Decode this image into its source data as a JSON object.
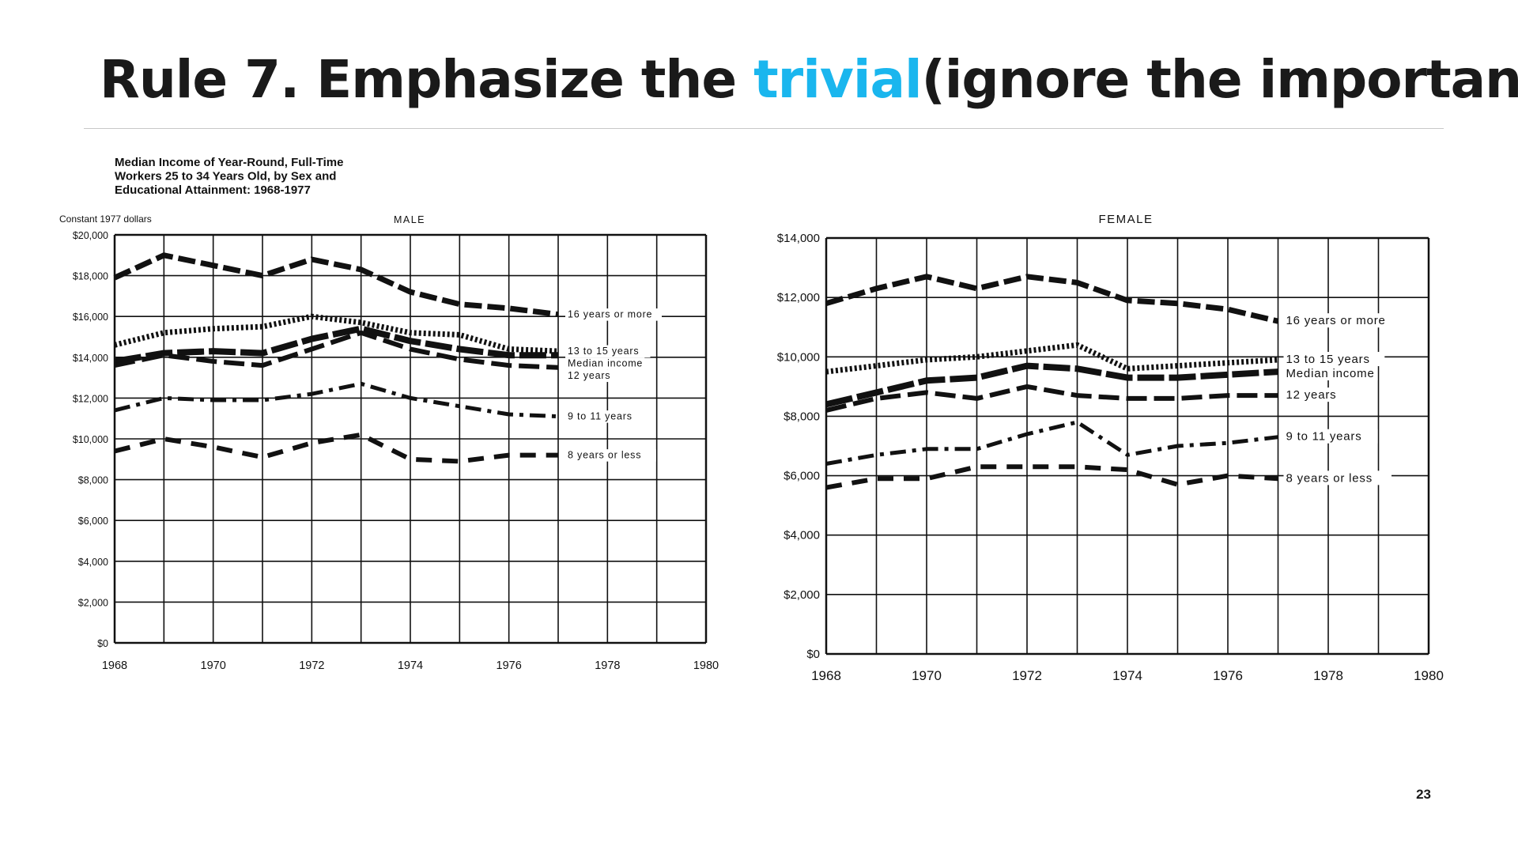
{
  "slide": {
    "title_prefix": "Rule 7. Emphasize the ",
    "title_highlight": "trivial",
    "title_suffix": "(ignore the important)",
    "highlight_color": "#1ab6ee",
    "page_number": "23"
  },
  "chart_data": [
    {
      "type": "line",
      "figure_title": [
        "Median Income of Year-Round, Full-Time",
        "Workers 25 to 34 Years Old, by Sex and",
        "Educational Attainment: 1968-1977"
      ],
      "title": "MALE",
      "ylabel": "Constant 1977 dollars",
      "xlim": [
        1968,
        1980
      ],
      "ylim": [
        0,
        20000
      ],
      "x_ticks": [
        "1968",
        "1970",
        "1972",
        "1974",
        "1976",
        "1978",
        "1980"
      ],
      "y_ticks": [
        "$0",
        "$2,000",
        "$4,000",
        "$6,000",
        "$8,000",
        "$10,000",
        "$12,000",
        "$14,000",
        "$16,000",
        "$18,000",
        "$20,000"
      ],
      "grid": true,
      "legend": "inline labels at right end of series",
      "x": [
        1968,
        1969,
        1970,
        1971,
        1972,
        1973,
        1974,
        1975,
        1976,
        1977
      ],
      "series": [
        {
          "name": "16 years or more",
          "style": "dashed-heavy",
          "values": [
            17900,
            19000,
            18500,
            18000,
            18800,
            18300,
            17200,
            16600,
            16400,
            16100
          ]
        },
        {
          "name": "13 to 15 years",
          "style": "dotted",
          "values": [
            14600,
            15200,
            15400,
            15500,
            16000,
            15700,
            15200,
            15100,
            14400,
            14300
          ]
        },
        {
          "name": "Median income",
          "style": "solid-heavy",
          "values": [
            13800,
            14200,
            14300,
            14200,
            14900,
            15400,
            14800,
            14400,
            14100,
            14100
          ]
        },
        {
          "name": "12 years",
          "style": "long-dashed",
          "values": [
            13600,
            14100,
            13800,
            13600,
            14400,
            15200,
            14400,
            13900,
            13600,
            13500
          ]
        },
        {
          "name": "9 to 11 years",
          "style": "dash-dot",
          "values": [
            11400,
            12000,
            11900,
            11900,
            12200,
            12700,
            12000,
            11600,
            11200,
            11100
          ]
        },
        {
          "name": "8 years or less",
          "style": "dashed",
          "values": [
            9400,
            10000,
            9600,
            9100,
            9800,
            10200,
            9000,
            8900,
            9200,
            9200
          ]
        }
      ]
    },
    {
      "type": "line",
      "title": "FEMALE",
      "xlim": [
        1968,
        1980
      ],
      "ylim": [
        0,
        14000
      ],
      "x_ticks": [
        "1968",
        "1970",
        "1972",
        "1974",
        "1976",
        "1978",
        "1980"
      ],
      "y_ticks": [
        "$0",
        "$2,000",
        "$4,000",
        "$6,000",
        "$8,000",
        "$10,000",
        "$12,000",
        "$14,000"
      ],
      "grid": true,
      "legend": "inline labels at right end of series",
      "x": [
        1968,
        1969,
        1970,
        1971,
        1972,
        1973,
        1974,
        1975,
        1976,
        1977
      ],
      "series": [
        {
          "name": "16 years or more",
          "style": "dashed-heavy",
          "values": [
            11800,
            12300,
            12700,
            12300,
            12700,
            12500,
            11900,
            11800,
            11600,
            11200
          ]
        },
        {
          "name": "13 to 15 years",
          "style": "dotted",
          "values": [
            9500,
            9700,
            9900,
            10000,
            10200,
            10400,
            9600,
            9700,
            9800,
            9900
          ]
        },
        {
          "name": "Median income",
          "style": "solid-heavy",
          "values": [
            8400,
            8800,
            9200,
            9300,
            9700,
            9600,
            9300,
            9300,
            9400,
            9500
          ]
        },
        {
          "name": "12 years",
          "style": "long-dashed",
          "values": [
            8200,
            8600,
            8800,
            8600,
            9000,
            8700,
            8600,
            8600,
            8700,
            8700
          ]
        },
        {
          "name": "9 to 11 years",
          "style": "dash-dot",
          "values": [
            6400,
            6700,
            6900,
            6900,
            7400,
            7800,
            6700,
            7000,
            7100,
            7300
          ]
        },
        {
          "name": "8 years or less",
          "style": "dashed",
          "values": [
            5600,
            5900,
            5900,
            6300,
            6300,
            6300,
            6200,
            5700,
            6000,
            5900
          ]
        }
      ]
    }
  ]
}
